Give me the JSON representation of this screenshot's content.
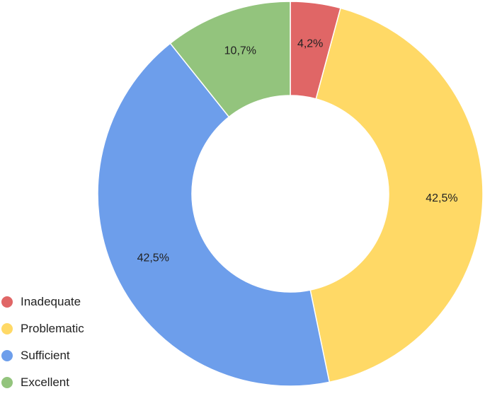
{
  "chart_data": {
    "type": "pie",
    "variant": "donut",
    "title": "",
    "start_angle_deg": 0,
    "direction": "clockwise",
    "slices": [
      {
        "label": "Inadequate",
        "value": 4.2,
        "display": "4,2%",
        "color": "#e06666"
      },
      {
        "label": "Problematic",
        "value": 42.5,
        "display": "42,5%",
        "color": "#ffd966"
      },
      {
        "label": "Sufficient",
        "value": 42.5,
        "display": "42,5%",
        "color": "#6d9eeb"
      },
      {
        "label": "Excellent",
        "value": 10.7,
        "display": "10,7%",
        "color": "#93c47d"
      }
    ],
    "legend": {
      "position": "bottom-left",
      "entries": [
        "Inadequate",
        "Problematic",
        "Sufficient",
        "Excellent"
      ]
    },
    "data_labels": "on-slices"
  }
}
